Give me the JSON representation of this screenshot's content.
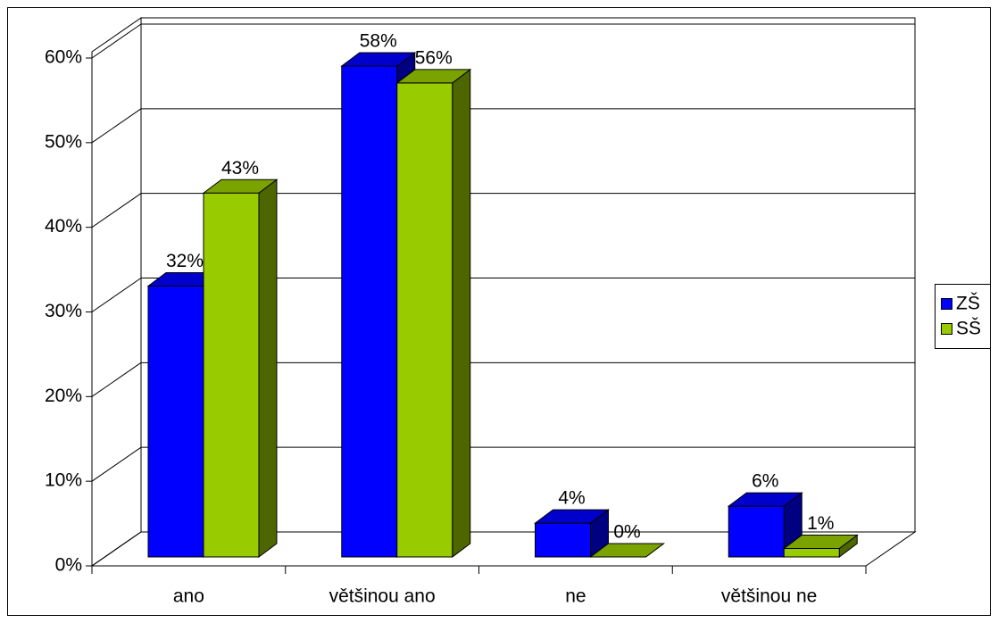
{
  "chart_data": {
    "type": "bar3d",
    "categories": [
      "ano",
      "většinou ano",
      "ne",
      "většinou ne"
    ],
    "series": [
      {
        "name": "ZŠ",
        "color": "#0000ff",
        "values": [
          32,
          58,
          4,
          6
        ],
        "value_labels": [
          "32%",
          "58%",
          "4%",
          "6%"
        ]
      },
      {
        "name": "SŠ",
        "color": "#99cc00",
        "values": [
          43,
          56,
          0,
          1
        ],
        "value_labels": [
          "43%",
          "56%",
          "0%",
          "1%"
        ]
      }
    ],
    "ylim": [
      0,
      60
    ],
    "yticks": [
      {
        "value": 0,
        "label": "0%"
      },
      {
        "value": 10,
        "label": "10%"
      },
      {
        "value": 20,
        "label": "20%"
      },
      {
        "value": 30,
        "label": "30%"
      },
      {
        "value": 40,
        "label": "40%"
      },
      {
        "value": 50,
        "label": "50%"
      },
      {
        "value": 60,
        "label": "60%"
      }
    ],
    "grid": true,
    "legend": "right"
  }
}
